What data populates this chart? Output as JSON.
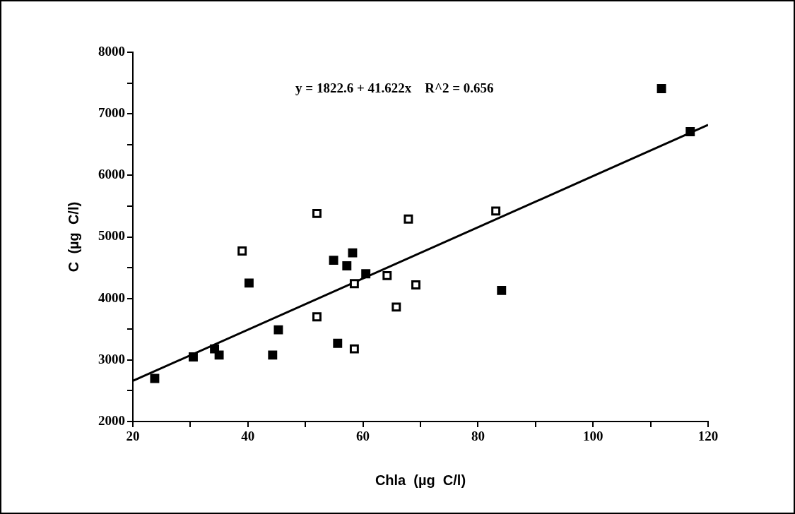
{
  "chart_data": {
    "type": "scatter",
    "xlabel": "Chla  (µg  C/l)",
    "ylabel": "C  (µg  C/l)",
    "annotations": [
      "y = 1822.6 + 41.622x    R^2 = 0.656"
    ],
    "xlim": [
      20,
      120
    ],
    "xticks": [
      20,
      {
        "value": 30,
        "label": null
      },
      40,
      {
        "value": 50,
        "label": null
      },
      60,
      {
        "value": 70,
        "label": null
      },
      80,
      {
        "value": 90,
        "label": null
      },
      100,
      {
        "value": 110,
        "label": null
      },
      120
    ],
    "ylim": [
      2000,
      8000
    ],
    "yticks": [
      2000,
      {
        "value": 2500,
        "label": null
      },
      3000,
      {
        "value": 3500,
        "label": null
      },
      4000,
      {
        "value": 4500,
        "label": null
      },
      5000,
      {
        "value": 5500,
        "label": null
      },
      6000,
      {
        "value": 6500,
        "label": null
      },
      7000,
      {
        "value": 7500,
        "label": null
      },
      8000
    ],
    "grid": false,
    "legend": false,
    "marker": "square",
    "series": [
      {
        "color": "#000000",
        "x": [
          23.8,
          30.5,
          34.2,
          35.0,
          40.2,
          44.3,
          45.3,
          54.9,
          55.6,
          57.2,
          58.2,
          60.5,
          84.1,
          111.9,
          116.9
        ],
        "values": [
          2700,
          3050,
          3180,
          3080,
          4250,
          3080,
          3490,
          4620,
          3270,
          4530,
          4740,
          4400,
          4130,
          7410,
          6710
        ]
      },
      {
        "color": "#ffffff",
        "x": [
          39.0,
          52.0,
          52.0,
          58.5,
          58.5,
          64.2,
          65.8,
          67.9,
          69.2,
          83.1
        ],
        "values": [
          4770,
          5380,
          3700,
          4240,
          3180,
          4370,
          3860,
          5290,
          4220,
          5420
        ]
      },
      {
        "type": "line",
        "marker": "none",
        "color": "#000000",
        "x": [
          20,
          120
        ],
        "values": [
          2660,
          6820
        ]
      }
    ]
  }
}
